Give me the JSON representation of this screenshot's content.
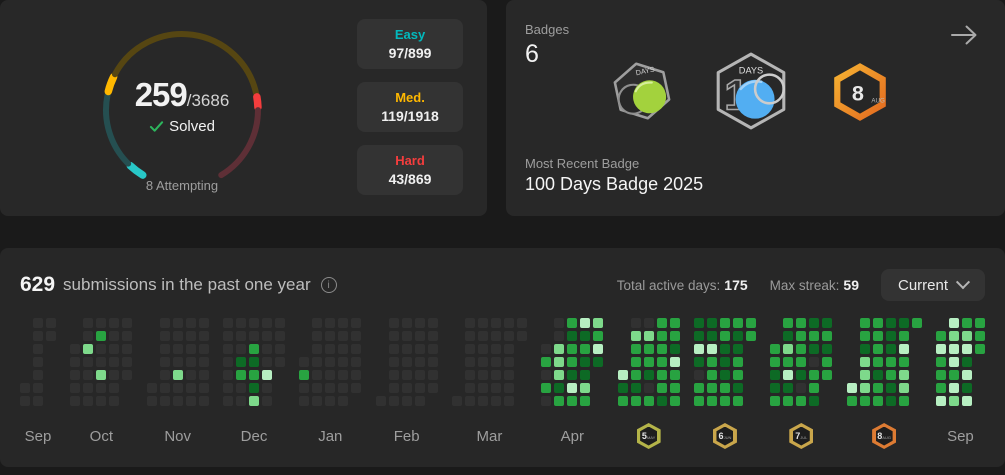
{
  "progress_card": {
    "solved": "259",
    "total": "/3686",
    "solved_label": "Solved",
    "attempting": "8 Attempting",
    "ring": {
      "start_degree": 120,
      "segments": [
        {
          "name": "easy-solved",
          "color": "#28c7c7",
          "deg": 14,
          "bright": true
        },
        {
          "name": "easy-unsolved",
          "color": "#254f51",
          "deg": 59,
          "bright": false
        },
        {
          "name": "medium-solved",
          "color": "#ffb800",
          "deg": 14,
          "bright": true
        },
        {
          "name": "medium-unsolved",
          "color": "#564612",
          "deg": 142,
          "bright": false
        },
        {
          "name": "hard-solved",
          "color": "#f53d3d",
          "deg": 10,
          "bright": true
        },
        {
          "name": "hard-unsolved",
          "color": "#5e2f36",
          "deg": 61,
          "bright": false
        }
      ]
    },
    "stats": [
      {
        "label": "Easy",
        "value": "97/899",
        "color": "#02b9bd"
      },
      {
        "label": "Med.",
        "value": "119/1918",
        "color": "#ffb800"
      },
      {
        "label": "Hard",
        "value": "43/869",
        "color": "#f53d3d"
      }
    ]
  },
  "badges_card": {
    "title": "Badges",
    "count": "6",
    "badge_50_days_label": "DAYS",
    "badge_100_days_label": "DAYS",
    "badge_100_numeral": "1",
    "badge_aug_number": "8",
    "badge_aug_month": "AUG",
    "most_recent_label": "Most Recent Badge",
    "most_recent_name": "100 Days Badge 2025"
  },
  "heatmap": {
    "count": "629",
    "title_text": "submissions in the past one year",
    "info_glyph": "i",
    "total_active_days_label": "Total active days:",
    "total_active_days": "175",
    "max_streak_label": "Max streak:",
    "max_streak": "59",
    "range_selected": "Current",
    "level_colors": [
      "#313131",
      "#0d6a25",
      "#28a341",
      "#7ed98b",
      "#b7efc2"
    ],
    "months": [
      {
        "label": "Sep",
        "cols": [
          ".....00",
          "0000000",
          "00....."
        ]
      },
      {
        "label": "Oct",
        "cols": [
          "..00000",
          "0030000",
          "0200300",
          "0000000",
          "00000.."
        ]
      },
      {
        "label": "Nov",
        "cols": [
          ".....00",
          "0000000",
          "0000300",
          "0000000",
          "0000000"
        ]
      },
      {
        "label": "Dec",
        "cols": [
          "0000000",
          "0001200",
          "0021213",
          "0000400",
          "0000..."
        ]
      },
      {
        "label": "Jan",
        "cols": [
          "...0200",
          "0000000",
          "0000000",
          "0000000",
          "000000."
        ]
      },
      {
        "label": "Feb",
        "cols": [
          "......0",
          "0000000",
          "0000000",
          "0000000",
          "000000."
        ]
      },
      {
        "label": "Mar",
        "cols": [
          "......0",
          "0000000",
          "0000000",
          "0000000",
          "0000000",
          "00....."
        ]
      },
      {
        "label": "Apr",
        "cols": [
          "..02020",
          "0033312",
          "2122142",
          "4121132",
          "3241..."
        ]
      },
      {
        "label": "",
        "badge": {
          "number": "5",
          "month": "MAY",
          "ring": "#b4b449"
        },
        "cols": [
          "....412",
          "0322212",
          "0322102",
          "2222221",
          "2214222"
        ]
      },
      {
        "label": "",
        "badge": {
          "number": "6",
          "month": "JUN",
          "ring": "#c9a64b"
        },
        "cols": [
          "1141022",
          "1142222",
          "2211122",
          "2112212",
          "22....."
        ]
      },
      {
        "label": "",
        "badge": {
          "number": "7",
          "month": "JUL",
          "ring": "#c9a64b"
        },
        "cols": [
          "..22112",
          "2132412",
          "2222102",
          "1210221",
          "12122.."
        ]
      },
      {
        "label": "",
        "badge": {
          "number": "8",
          "month": "AUG",
          "ring": "#dd7b33"
        },
        "cols": [
          ".....42",
          "2213332",
          "2222122",
          "1112211",
          "1242332",
          "2......"
        ]
      },
      {
        "label": "Sep",
        "cols": [
          ".242224",
          "4344243",
          "2341414",
          "222...."
        ]
      }
    ]
  }
}
